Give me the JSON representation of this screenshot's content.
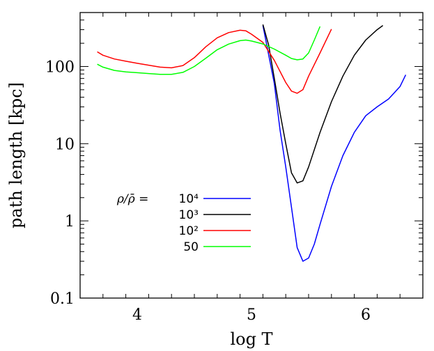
{
  "chart_data": {
    "type": "line",
    "xlabel": "log T",
    "ylabel": "path length [kpc]",
    "xlim": [
      3.5,
      6.5
    ],
    "ylim": [
      0.1,
      500
    ],
    "yscale": "log",
    "xticks": [
      {
        "value": 4,
        "label": "4"
      },
      {
        "value": 5,
        "label": "5"
      },
      {
        "value": 6,
        "label": "6"
      }
    ],
    "yticks": [
      {
        "value": 0.1,
        "label": "0.1"
      },
      {
        "value": 1,
        "label": "1"
      },
      {
        "value": 10,
        "label": "10"
      },
      {
        "value": 100,
        "label": "100"
      }
    ],
    "legend": {
      "lead": "ρ/ρ̄  =",
      "placement": "lower-left",
      "entries": [
        {
          "label": "10⁴",
          "color": "#0000ff"
        },
        {
          "label": "10³",
          "color": "#000000"
        },
        {
          "label": "10²",
          "color": "#ff0000"
        },
        {
          "label": "50",
          "color": "#00ff00"
        }
      ]
    },
    "series": [
      {
        "name": "10⁴",
        "color": "#0000ff",
        "points": [
          [
            5.1,
            340
          ],
          [
            5.2,
            60
          ],
          [
            5.25,
            15
          ],
          [
            5.3,
            5
          ],
          [
            5.35,
            1.5
          ],
          [
            5.4,
            0.45
          ],
          [
            5.45,
            0.3
          ],
          [
            5.5,
            0.33
          ],
          [
            5.55,
            0.5
          ],
          [
            5.6,
            0.9
          ],
          [
            5.7,
            2.8
          ],
          [
            5.8,
            7
          ],
          [
            5.9,
            14
          ],
          [
            6.0,
            23
          ],
          [
            6.1,
            30
          ],
          [
            6.2,
            38
          ],
          [
            6.3,
            55
          ],
          [
            6.35,
            78
          ]
        ]
      },
      {
        "name": "10³",
        "color": "#000000",
        "points": [
          [
            5.1,
            350
          ],
          [
            5.15,
            190
          ],
          [
            5.2,
            70
          ],
          [
            5.25,
            25
          ],
          [
            5.3,
            10
          ],
          [
            5.35,
            4.2
          ],
          [
            5.4,
            3.1
          ],
          [
            5.45,
            3.3
          ],
          [
            5.5,
            5
          ],
          [
            5.6,
            14
          ],
          [
            5.7,
            35
          ],
          [
            5.8,
            75
          ],
          [
            5.9,
            140
          ],
          [
            6.0,
            220
          ],
          [
            6.1,
            300
          ],
          [
            6.15,
            340
          ]
        ]
      },
      {
        "name": "10²",
        "color": "#ff0000",
        "points": [
          [
            3.65,
            155
          ],
          [
            3.7,
            140
          ],
          [
            3.8,
            125
          ],
          [
            3.9,
            117
          ],
          [
            4.0,
            110
          ],
          [
            4.1,
            104
          ],
          [
            4.2,
            98
          ],
          [
            4.3,
            96
          ],
          [
            4.4,
            103
          ],
          [
            4.5,
            130
          ],
          [
            4.6,
            180
          ],
          [
            4.7,
            235
          ],
          [
            4.8,
            275
          ],
          [
            4.9,
            295
          ],
          [
            4.95,
            290
          ],
          [
            5.0,
            262
          ],
          [
            5.1,
            205
          ],
          [
            5.2,
            120
          ],
          [
            5.3,
            62
          ],
          [
            5.35,
            48
          ],
          [
            5.4,
            45
          ],
          [
            5.45,
            50
          ],
          [
            5.5,
            75
          ],
          [
            5.6,
            150
          ],
          [
            5.7,
            305
          ]
        ]
      },
      {
        "name": "50",
        "color": "#00ff00",
        "points": [
          [
            3.65,
            107
          ],
          [
            3.7,
            98
          ],
          [
            3.8,
            89
          ],
          [
            3.9,
            85
          ],
          [
            4.0,
            83
          ],
          [
            4.1,
            81
          ],
          [
            4.2,
            79
          ],
          [
            4.3,
            79
          ],
          [
            4.4,
            84
          ],
          [
            4.5,
            100
          ],
          [
            4.6,
            128
          ],
          [
            4.7,
            165
          ],
          [
            4.8,
            195
          ],
          [
            4.9,
            216
          ],
          [
            4.95,
            220
          ],
          [
            5.0,
            214
          ],
          [
            5.1,
            196
          ],
          [
            5.2,
            168
          ],
          [
            5.3,
            140
          ],
          [
            5.35,
            127
          ],
          [
            5.4,
            122
          ],
          [
            5.45,
            125
          ],
          [
            5.5,
            150
          ],
          [
            5.55,
            220
          ],
          [
            5.6,
            330
          ]
        ]
      }
    ]
  }
}
